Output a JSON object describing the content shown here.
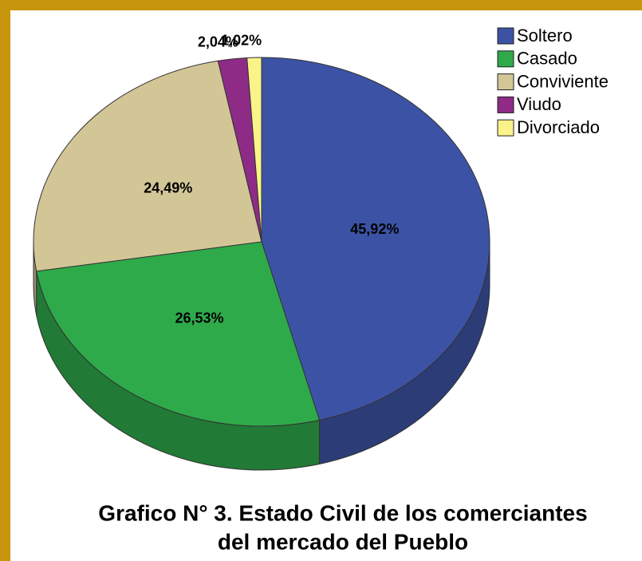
{
  "chart_data": {
    "type": "pie",
    "title": [
      "Grafico N° 3. Estado Civil de los comerciantes",
      "del mercado del Pueblo"
    ],
    "categories": [
      "Soltero",
      "Casado",
      "Conviviente",
      "Viudo",
      "Divorciado"
    ],
    "values": [
      45.92,
      26.53,
      24.49,
      2.04,
      1.02
    ],
    "value_labels": [
      "45,92%",
      "26,53%",
      "24,49%",
      "2,04%",
      "1,02%"
    ],
    "colors": [
      "#3c53a5",
      "#2eaa4a",
      "#d2c697",
      "#8e2b86",
      "#faf38a"
    ],
    "legend": "top-right"
  }
}
